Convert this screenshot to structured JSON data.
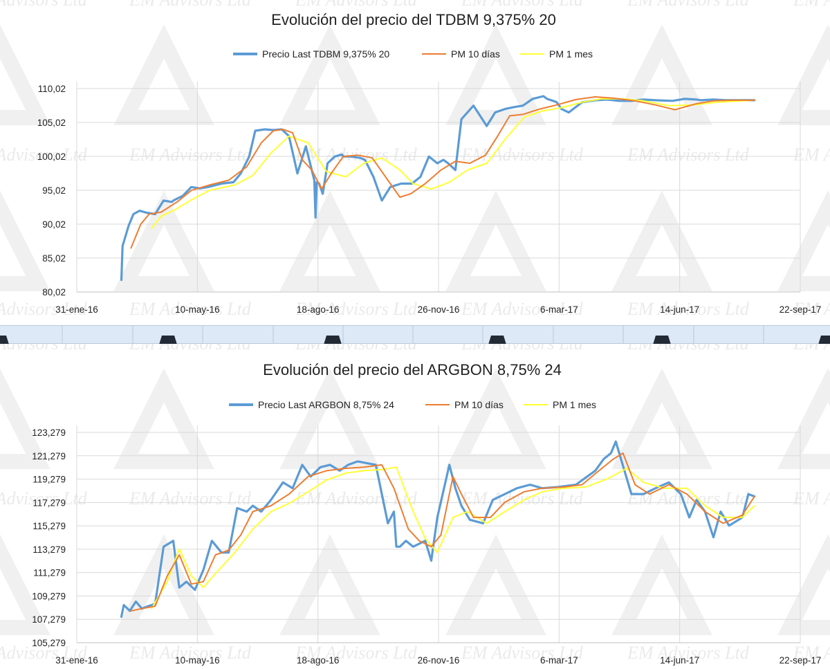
{
  "colors": {
    "price": "#5b9bd5",
    "pm10": "#ed7d31",
    "pm1m": "#ffff33"
  },
  "watermark": {
    "text": "EM Advisors Ltd",
    "icon": "delta-triangle-logo"
  },
  "chart_data": [
    {
      "type": "line",
      "title": "Evolución del precio del TDBM 9,375% 20",
      "x_tick_labels": [
        "31-ene-16",
        "10-may-16",
        "18-ago-16",
        "26-nov-16",
        "6-mar-17",
        "14-jun-17",
        "22-sep-17"
      ],
      "y_tick_labels": [
        "80,02",
        "85,02",
        "90,02",
        "95,02",
        "100,02",
        "105,02",
        "110,02"
      ],
      "ylim": [
        80.02,
        110.02
      ],
      "y_step": 5,
      "grid": true,
      "legend_position": "top",
      "series": [
        {
          "name": "Precio Last TDBM 9,375% 20",
          "color": "#5b9bd5",
          "x": [
            "2016-03-08",
            "2016-03-09",
            "2016-03-11",
            "2016-03-14",
            "2016-03-18",
            "2016-03-23",
            "2016-03-29",
            "2016-04-05",
            "2016-04-12",
            "2016-04-19",
            "2016-04-20",
            "2016-04-28",
            "2016-05-05",
            "2016-05-12",
            "2016-05-19",
            "2016-05-30",
            "2016-06-09",
            "2016-06-15",
            "2016-06-22",
            "2016-06-27",
            "2016-07-05",
            "2016-07-12",
            "2016-07-19",
            "2016-07-25",
            "2016-08-01",
            "2016-08-08",
            "2016-08-15",
            "2016-08-16",
            "2016-08-17",
            "2016-08-19",
            "2016-08-22",
            "2016-08-26",
            "2016-09-01",
            "2016-09-07",
            "2016-09-08",
            "2016-09-14",
            "2016-09-22",
            "2016-09-26",
            "2016-10-03",
            "2016-10-10",
            "2016-10-17",
            "2016-10-26",
            "2016-11-04",
            "2016-11-11",
            "2016-11-18",
            "2016-11-25",
            "2016-11-30",
            "2016-12-04",
            "2016-12-10",
            "2016-12-15",
            "2016-12-25",
            "2017-01-05",
            "2017-01-12",
            "2017-01-20",
            "2017-01-28",
            "2017-02-04",
            "2017-02-12",
            "2017-02-21",
            "2017-02-24",
            "2017-03-01",
            "2017-03-04",
            "2017-03-08",
            "2017-03-14",
            "2017-03-25",
            "2017-04-05",
            "2017-04-15",
            "2017-04-25",
            "2017-05-05",
            "2017-05-15",
            "2017-05-25",
            "2017-06-08",
            "2017-06-18",
            "2017-06-28",
            "2017-07-02",
            "2017-07-12",
            "2017-07-22",
            "2017-08-01",
            "2017-08-15"
          ],
          "y": [
            81.8,
            86.8,
            88.0,
            89.8,
            91.5,
            92.0,
            91.7,
            91.5,
            93.5,
            93.3,
            93.5,
            94.2,
            95.5,
            95.3,
            95.5,
            96.0,
            96.2,
            97.5,
            100.0,
            103.8,
            104.0,
            103.9,
            104.0,
            103.0,
            97.5,
            101.5,
            96.5,
            91.0,
            96.2,
            96.0,
            94.5,
            99.0,
            100.0,
            100.3,
            100.0,
            100.0,
            99.8,
            99.5,
            97.0,
            93.5,
            95.5,
            96.0,
            96.0,
            97.0,
            100.0,
            99.0,
            99.5,
            99.0,
            98.0,
            105.5,
            107.5,
            104.5,
            106.5,
            107.0,
            107.3,
            107.5,
            108.5,
            108.9,
            108.5,
            108.2,
            108.0,
            107.0,
            106.5,
            108.0,
            108.3,
            108.4,
            108.2,
            108.2,
            108.4,
            108.3,
            108.2,
            108.5,
            108.4,
            108.3,
            108.4,
            108.3,
            108.3,
            108.3
          ]
        },
        {
          "name": "PM 10 días",
          "color": "#ed7d31",
          "x": [
            "2016-03-16",
            "2016-03-24",
            "2016-03-31",
            "2016-04-10",
            "2016-04-24",
            "2016-05-05",
            "2016-05-20",
            "2016-06-05",
            "2016-06-20",
            "2016-07-02",
            "2016-07-12",
            "2016-07-20",
            "2016-07-28",
            "2016-08-05",
            "2016-08-13",
            "2016-08-21",
            "2016-08-29",
            "2016-09-08",
            "2016-09-20",
            "2016-10-02",
            "2016-10-15",
            "2016-10-25",
            "2016-11-03",
            "2016-11-15",
            "2016-11-28",
            "2016-12-10",
            "2016-12-22",
            "2017-01-04",
            "2017-01-14",
            "2017-01-24",
            "2017-02-04",
            "2017-02-18",
            "2017-03-04",
            "2017-03-20",
            "2017-04-05",
            "2017-04-20",
            "2017-05-08",
            "2017-05-25",
            "2017-06-10",
            "2017-06-28",
            "2017-07-12",
            "2017-07-25",
            "2017-08-15"
          ],
          "y": [
            86.5,
            90.0,
            91.5,
            91.8,
            93.4,
            95.0,
            95.8,
            96.5,
            98.5,
            102.0,
            103.8,
            104.0,
            103.5,
            99.5,
            98.0,
            95.2,
            97.5,
            100.0,
            100.2,
            99.8,
            96.5,
            94.0,
            94.5,
            96.0,
            98.0,
            99.3,
            99.0,
            100.2,
            103.0,
            106.0,
            106.2,
            107.0,
            107.6,
            108.4,
            108.8,
            108.6,
            108.2,
            107.6,
            106.9,
            107.8,
            108.2,
            108.3,
            108.3
          ]
        },
        {
          "name": "PM 1 mes",
          "color": "#ffff33",
          "x": [
            "2016-04-02",
            "2016-04-10",
            "2016-04-20",
            "2016-05-05",
            "2016-05-20",
            "2016-06-10",
            "2016-06-25",
            "2016-07-10",
            "2016-07-25",
            "2016-08-10",
            "2016-08-25",
            "2016-09-10",
            "2016-09-25",
            "2016-10-10",
            "2016-10-25",
            "2016-11-05",
            "2016-11-20",
            "2016-12-05",
            "2016-12-20",
            "2017-01-05",
            "2017-01-20",
            "2017-02-05",
            "2017-02-20",
            "2017-03-08",
            "2017-03-25",
            "2017-04-10",
            "2017-04-28",
            "2017-05-15",
            "2017-06-05",
            "2017-06-25",
            "2017-07-15",
            "2017-08-15"
          ],
          "y": [
            89.4,
            91.2,
            92.0,
            93.6,
            95.0,
            95.8,
            97.2,
            100.5,
            103.0,
            102.0,
            97.8,
            97.0,
            99.0,
            99.8,
            98.0,
            96.0,
            95.2,
            96.2,
            98.0,
            99.0,
            102.5,
            105.8,
            106.7,
            107.2,
            108.0,
            108.5,
            108.5,
            108.2,
            107.5,
            107.6,
            108.0,
            108.3
          ]
        }
      ]
    },
    {
      "type": "line",
      "title": "Evolución del precio del ARGBON 8,75% 24",
      "x_tick_labels": [
        "31-ene-16",
        "10-may-16",
        "18-ago-16",
        "26-nov-16",
        "6-mar-17",
        "14-jun-17",
        "22-sep-17"
      ],
      "y_tick_labels": [
        "105,279",
        "107,279",
        "109,279",
        "111,279",
        "113,279",
        "115,279",
        "117,279",
        "119,279",
        "121,279",
        "123,279"
      ],
      "ylim": [
        105.279,
        123.279
      ],
      "y_step": 2,
      "grid": true,
      "legend_position": "top",
      "series": [
        {
          "name": "Precio Last ARGBON 8,75% 24",
          "color": "#5b9bd5",
          "x": [
            "2016-03-08",
            "2016-03-10",
            "2016-03-15",
            "2016-03-20",
            "2016-03-25",
            "2016-03-30",
            "2016-04-05",
            "2016-04-12",
            "2016-04-20",
            "2016-04-25",
            "2016-05-01",
            "2016-05-08",
            "2016-05-15",
            "2016-05-22",
            "2016-05-30",
            "2016-06-05",
            "2016-06-12",
            "2016-06-20",
            "2016-06-25",
            "2016-07-02",
            "2016-07-10",
            "2016-07-20",
            "2016-07-28",
            "2016-08-05",
            "2016-08-12",
            "2016-08-20",
            "2016-08-28",
            "2016-09-05",
            "2016-09-12",
            "2016-09-20",
            "2016-10-05",
            "2016-10-15",
            "2016-10-20",
            "2016-10-22",
            "2016-10-25",
            "2016-10-30",
            "2016-11-05",
            "2016-11-15",
            "2016-11-20",
            "2016-11-25",
            "2016-12-05",
            "2016-12-10",
            "2016-12-15",
            "2016-12-22",
            "2017-01-02",
            "2017-01-10",
            "2017-01-20",
            "2017-01-30",
            "2017-02-10",
            "2017-02-20",
            "2017-03-05",
            "2017-03-20",
            "2017-04-05",
            "2017-04-12",
            "2017-04-18",
            "2017-04-22",
            "2017-05-05",
            "2017-05-15",
            "2017-05-25",
            "2017-06-05",
            "2017-06-15",
            "2017-06-22",
            "2017-06-28",
            "2017-07-05",
            "2017-07-12",
            "2017-07-18",
            "2017-07-25",
            "2017-08-05",
            "2017-08-10",
            "2017-08-15"
          ],
          "y": [
            107.5,
            108.5,
            108.0,
            108.8,
            108.2,
            108.4,
            108.6,
            113.5,
            114.0,
            110.0,
            110.5,
            109.8,
            111.5,
            114.0,
            113.0,
            113.0,
            116.8,
            116.5,
            117.0,
            116.5,
            117.5,
            119.0,
            118.5,
            120.5,
            119.5,
            120.3,
            120.5,
            120.0,
            120.5,
            120.8,
            120.5,
            115.5,
            116.5,
            113.5,
            113.5,
            114.0,
            113.5,
            114.0,
            112.3,
            116.0,
            120.5,
            118.5,
            117.0,
            115.8,
            115.5,
            117.5,
            118.0,
            118.5,
            118.8,
            118.5,
            118.6,
            118.8,
            120.0,
            121.0,
            121.5,
            122.5,
            118.0,
            118.0,
            118.5,
            119.0,
            118.0,
            116.0,
            117.5,
            116.5,
            114.3,
            116.5,
            115.3,
            116.0,
            118.0,
            117.8
          ]
        },
        {
          "name": "PM 10 días",
          "color": "#ed7d31",
          "x": [
            "2016-03-16",
            "2016-03-25",
            "2016-04-05",
            "2016-04-15",
            "2016-04-25",
            "2016-05-05",
            "2016-05-15",
            "2016-05-25",
            "2016-06-05",
            "2016-06-15",
            "2016-06-25",
            "2016-07-10",
            "2016-07-25",
            "2016-08-10",
            "2016-08-25",
            "2016-09-10",
            "2016-09-25",
            "2016-10-10",
            "2016-10-20",
            "2016-11-01",
            "2016-11-10",
            "2016-11-20",
            "2016-11-28",
            "2016-12-08",
            "2016-12-15",
            "2016-12-25",
            "2017-01-08",
            "2017-01-20",
            "2017-02-05",
            "2017-02-20",
            "2017-03-10",
            "2017-03-25",
            "2017-04-08",
            "2017-04-20",
            "2017-04-28",
            "2017-05-08",
            "2017-05-20",
            "2017-06-05",
            "2017-06-20",
            "2017-07-05",
            "2017-07-20",
            "2017-08-05",
            "2017-08-15"
          ],
          "y": [
            108.0,
            108.2,
            108.4,
            111.0,
            112.8,
            110.3,
            110.5,
            112.8,
            113.2,
            114.5,
            116.5,
            117.0,
            118.0,
            119.5,
            120.0,
            120.2,
            120.3,
            120.5,
            118.5,
            115.0,
            114.0,
            113.5,
            114.5,
            119.5,
            118.0,
            116.0,
            116.0,
            117.3,
            118.2,
            118.5,
            118.6,
            118.8,
            120.0,
            121.0,
            121.5,
            118.8,
            118.0,
            118.8,
            118.0,
            116.5,
            115.5,
            116.2,
            117.8
          ]
        },
        {
          "name": "PM 1 mes",
          "color": "#ffff33",
          "x": [
            "2016-04-02",
            "2016-04-15",
            "2016-04-25",
            "2016-05-05",
            "2016-05-15",
            "2016-05-25",
            "2016-06-10",
            "2016-06-25",
            "2016-07-10",
            "2016-07-25",
            "2016-08-10",
            "2016-08-25",
            "2016-09-10",
            "2016-09-25",
            "2016-10-10",
            "2016-10-22",
            "2016-11-05",
            "2016-11-15",
            "2016-11-25",
            "2016-12-08",
            "2016-12-20",
            "2017-01-05",
            "2017-01-20",
            "2017-02-05",
            "2017-02-20",
            "2017-03-10",
            "2017-03-28",
            "2017-04-15",
            "2017-05-01",
            "2017-05-15",
            "2017-06-01",
            "2017-06-20",
            "2017-07-05",
            "2017-07-20",
            "2017-08-05",
            "2017-08-15"
          ],
          "y": [
            108.2,
            110.5,
            113.3,
            111.0,
            110.0,
            111.2,
            113.0,
            115.0,
            116.5,
            117.2,
            118.2,
            119.2,
            119.8,
            120.0,
            120.1,
            120.3,
            116.5,
            114.2,
            113.0,
            116.0,
            116.5,
            115.5,
            116.5,
            117.5,
            118.2,
            118.5,
            118.6,
            119.3,
            120.2,
            119.0,
            118.5,
            118.5,
            117.0,
            116.0,
            116.0,
            117.0
          ]
        }
      ]
    }
  ]
}
